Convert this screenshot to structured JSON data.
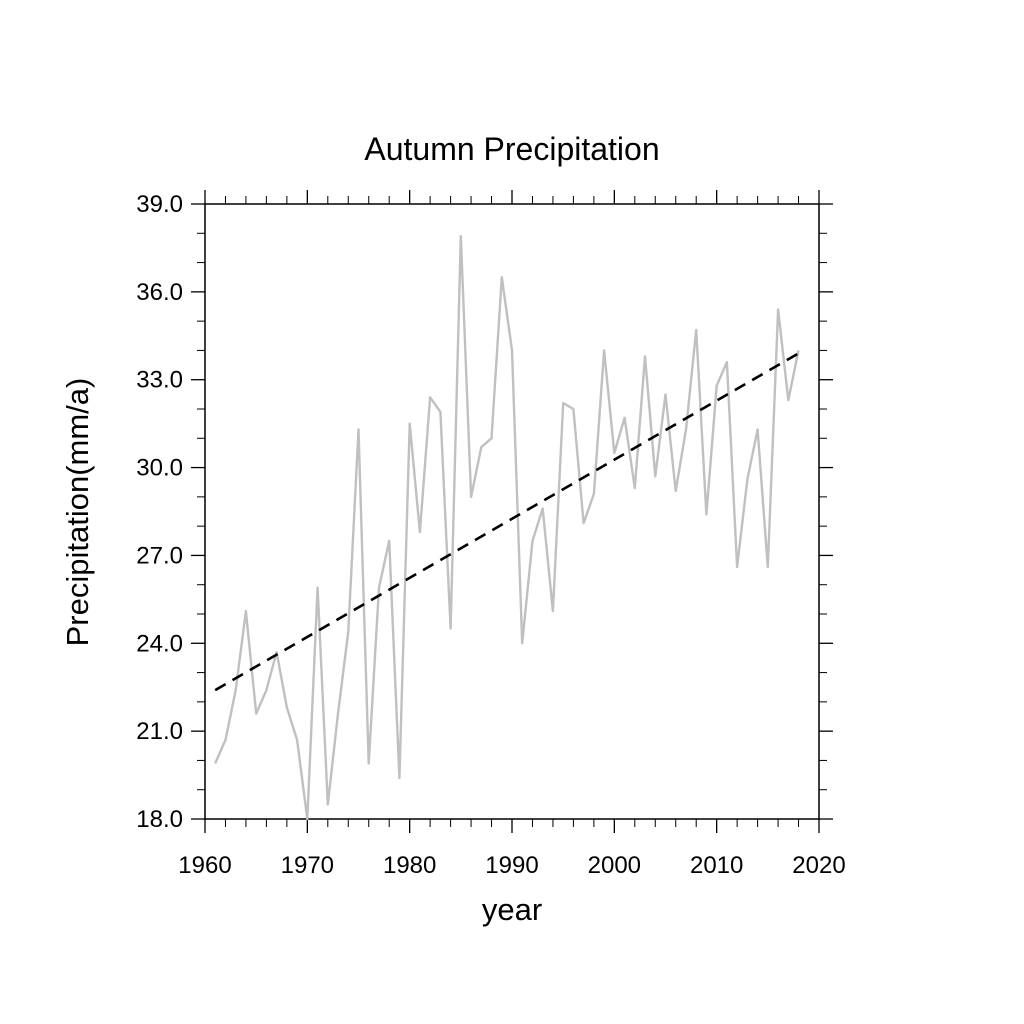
{
  "chart_data": {
    "type": "line",
    "title": "Autumn Precipitation",
    "xlabel": "year",
    "ylabel": "Precipitation(mm/a)",
    "xlim": [
      1960,
      2020
    ],
    "ylim": [
      18.0,
      39.0
    ],
    "xticks": [
      1960,
      1970,
      1980,
      1990,
      2000,
      2010,
      2020
    ],
    "xtick_labels": [
      "1960",
      "1970",
      "1980",
      "1990",
      "2000",
      "2010",
      "2020"
    ],
    "yticks": [
      18.0,
      21.0,
      24.0,
      27.0,
      30.0,
      33.0,
      36.0,
      39.0
    ],
    "ytick_labels": [
      "18.0",
      "21.0",
      "24.0",
      "27.0",
      "30.0",
      "33.0",
      "36.0",
      "39.0"
    ],
    "grid": false,
    "series": [
      {
        "color": "#c0c0c0",
        "style": "solid",
        "x": [
          1961,
          1962,
          1963,
          1964,
          1965,
          1966,
          1967,
          1968,
          1969,
          1970,
          1971,
          1972,
          1973,
          1974,
          1975,
          1976,
          1977,
          1978,
          1979,
          1980,
          1981,
          1982,
          1983,
          1984,
          1985,
          1986,
          1987,
          1988,
          1989,
          1990,
          1991,
          1992,
          1993,
          1994,
          1995,
          1996,
          1997,
          1998,
          1999,
          2000,
          2001,
          2002,
          2003,
          2004,
          2005,
          2006,
          2007,
          2008,
          2009,
          2010,
          2011,
          2012,
          2013,
          2014,
          2015,
          2016,
          2017,
          2018
        ],
        "values": [
          19.9,
          20.7,
          22.4,
          25.1,
          21.6,
          22.4,
          23.7,
          21.8,
          20.7,
          18.0,
          25.9,
          18.5,
          21.6,
          24.4,
          31.3,
          19.9,
          25.9,
          27.5,
          19.4,
          31.5,
          27.8,
          32.4,
          31.9,
          24.5,
          37.9,
          29.0,
          30.7,
          31.0,
          36.5,
          34.0,
          24.0,
          27.5,
          28.6,
          25.1,
          32.2,
          32.0,
          28.1,
          29.1,
          34.0,
          30.5,
          31.7,
          29.3,
          33.8,
          29.7,
          32.5,
          29.2,
          31.3,
          34.7,
          28.4,
          32.8,
          33.6,
          26.6,
          29.6,
          31.3,
          26.6,
          35.4,
          32.3,
          34.0
        ]
      },
      {
        "color": "#000000",
        "style": "dashed",
        "x": [
          1961,
          2018
        ],
        "values": [
          22.4,
          33.9
        ]
      }
    ]
  }
}
